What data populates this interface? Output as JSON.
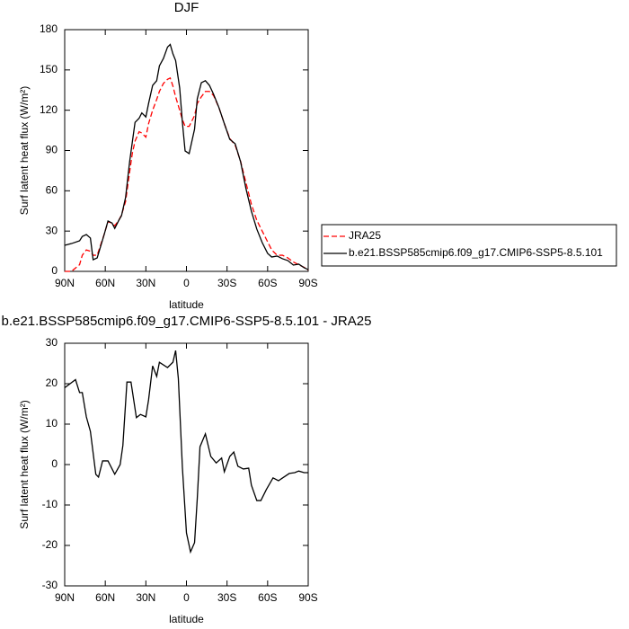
{
  "chart_data": [
    {
      "type": "line",
      "title": "DJF",
      "x_label": "latitude",
      "y_label": "Surf latent heat flux (W/m²)",
      "x": [
        90,
        85,
        79,
        77,
        74,
        71,
        69,
        66,
        61,
        58,
        55,
        53,
        50,
        48,
        45,
        42,
        40,
        38,
        35,
        33,
        30,
        28,
        25,
        22,
        20,
        17,
        14,
        12,
        10,
        8,
        5,
        3,
        1,
        -2,
        -6,
        -8,
        -11,
        -14,
        -17,
        -20,
        -24,
        -28,
        -32,
        -36,
        -40,
        -44,
        -48,
        -52,
        -56,
        -60,
        -63,
        -67,
        -71,
        -75,
        -79,
        -83,
        -87,
        -90
      ],
      "series": [
        {
          "name": "JRA25",
          "color": "#ff0000",
          "dash": true,
          "values": [
            0,
            0,
            5,
            12,
            16,
            15,
            12,
            12,
            27,
            37,
            36,
            34,
            38,
            42,
            52,
            74,
            88,
            97,
            104,
            103,
            100,
            110,
            120,
            128,
            134,
            140,
            143,
            144,
            138,
            130,
            120,
            113,
            108,
            108,
            116,
            125,
            130,
            134,
            134,
            131,
            122,
            110,
            99,
            94,
            82,
            66,
            50,
            38,
            30,
            22,
            16,
            12,
            12,
            10,
            7,
            5,
            3,
            1
          ]
        },
        {
          "name": "b.e21.BSSP585cmip6.f09_g17.CMIP6-SSP5-8.5.101",
          "color": "#000000",
          "dash": false,
          "values": [
            19.4,
            20.7,
            22.8,
            26,
            27.4,
            24.8,
            8.7,
            10,
            26.8,
            37.5,
            36,
            32,
            38,
            41.5,
            55,
            81.7,
            96.4,
            111,
            114,
            118,
            115,
            125,
            138.5,
            142,
            153,
            158.6,
            167,
            169,
            162,
            157,
            136.5,
            111,
            89.7,
            87.7,
            106,
            128.5,
            140.5,
            142,
            138.5,
            132,
            122,
            110,
            98.4,
            95,
            81.7,
            61.6,
            44.8,
            31.5,
            21.4,
            13.4,
            10.7,
            11.4,
            9.4,
            8,
            4.7,
            5.4,
            2.7,
            1.3
          ]
        }
      ],
      "xlim": [
        90,
        -90
      ],
      "xticks": [
        {
          "value": 90,
          "label": "90N"
        },
        {
          "value": 60,
          "label": "60N"
        },
        {
          "value": 30,
          "label": "30N"
        },
        0,
        {
          "value": -30,
          "label": "30S"
        },
        {
          "value": -60,
          "label": "60S"
        },
        {
          "value": -90,
          "label": "90S"
        }
      ],
      "ylim": [
        0,
        180
      ],
      "yticks": [
        0,
        30,
        60,
        90,
        120,
        150,
        180
      ],
      "legend": "right"
    },
    {
      "type": "line",
      "title": "b.e21.BSSP585cmip6.f09_g17.CMIP6-SSP5-8.5.101 - JRA25",
      "x_label": "latitude",
      "y_label": "Surf latent heat flux (W/m²)",
      "x": [
        90,
        82,
        79,
        77,
        74,
        71,
        67,
        65,
        62,
        58,
        53,
        49,
        47,
        44,
        41,
        37,
        34,
        30,
        28,
        25,
        22,
        20,
        14,
        10,
        8,
        6,
        3,
        0,
        -3,
        -6,
        -8,
        -10,
        -14,
        -18,
        -22,
        -26,
        -28,
        -32,
        -35,
        -38,
        -42,
        -46,
        -48,
        -52,
        -55,
        -59,
        -64,
        -68,
        -72,
        -76,
        -80,
        -83,
        -87,
        -90
      ],
      "series": [
        {
          "name": null,
          "color": "#000000",
          "dash": false,
          "values": [
            19,
            21,
            17.8,
            17.8,
            11.8,
            8.2,
            -2.4,
            -3.1,
            0.9,
            0.9,
            -2.4,
            0,
            4.7,
            20.4,
            20.4,
            11.6,
            12.4,
            11.8,
            16,
            24.4,
            21.8,
            25.3,
            24,
            25.3,
            28.2,
            21.3,
            -0.7,
            -16.9,
            -21.6,
            -19.3,
            -8.4,
            4.4,
            7.6,
            2,
            0.4,
            1.6,
            -1.8,
            2,
            3.1,
            -0.4,
            -1.1,
            -0.9,
            -5.1,
            -8.9,
            -8.9,
            -6.2,
            -3.3,
            -4,
            -3.1,
            -2.2,
            -2,
            -1.6,
            -2,
            -2
          ]
        }
      ],
      "xlim": [
        90,
        -90
      ],
      "xticks": [
        {
          "value": 90,
          "label": "90N"
        },
        {
          "value": 60,
          "label": "60N"
        },
        {
          "value": 30,
          "label": "30N"
        },
        0,
        {
          "value": -30,
          "label": "30S"
        },
        {
          "value": -60,
          "label": "60S"
        },
        {
          "value": -90,
          "label": "90S"
        }
      ],
      "ylim": [
        -30,
        30
      ],
      "yticks": [
        -30,
        -20,
        -10,
        0,
        10,
        20,
        30
      ]
    }
  ]
}
